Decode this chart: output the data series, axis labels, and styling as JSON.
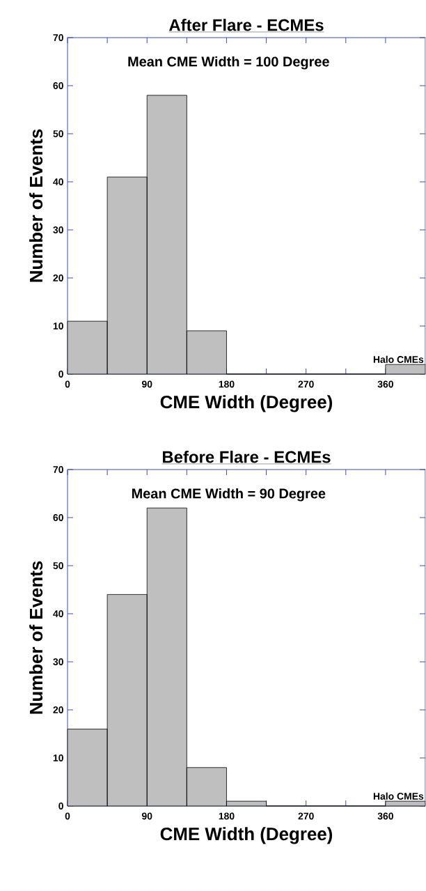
{
  "chart_data": [
    {
      "type": "histogram",
      "title": "After Flare - ECMEs",
      "xlabel": "CME Width (Degree)",
      "ylabel": "Number of Events",
      "bins": [
        0,
        45,
        90,
        135,
        180,
        225,
        270,
        315,
        360,
        405
      ],
      "values": [
        11,
        41,
        58,
        9,
        0,
        0,
        0,
        0,
        2
      ],
      "color": "#bfbfbf",
      "xlim": [
        0,
        405
      ],
      "ylim": [
        0,
        70
      ],
      "xticks": [
        0,
        {
          "value": 45,
          "label": null
        },
        90,
        {
          "value": 135,
          "label": null
        },
        180,
        {
          "value": 225,
          "label": null
        },
        270,
        {
          "value": 315,
          "label": null
        },
        360
      ],
      "yticks": [
        0,
        10,
        20,
        30,
        40,
        50,
        60,
        70
      ],
      "annotations": [
        "Mean CME Width = 100 Degree",
        "Halo CMEs"
      ]
    },
    {
      "type": "histogram",
      "title": "Before Flare - ECMEs",
      "xlabel": "CME Width (Degree)",
      "ylabel": "Number of Events",
      "bins": [
        0,
        45,
        90,
        135,
        180,
        225,
        270,
        315,
        360,
        405
      ],
      "values": [
        16,
        44,
        62,
        8,
        1,
        0,
        0,
        0,
        1
      ],
      "color": "#bfbfbf",
      "xlim": [
        0,
        405
      ],
      "ylim": [
        0,
        70
      ],
      "xticks": [
        0,
        {
          "value": 45,
          "label": null
        },
        90,
        {
          "value": 135,
          "label": null
        },
        180,
        {
          "value": 225,
          "label": null
        },
        270,
        {
          "value": 315,
          "label": null
        },
        360
      ],
      "yticks": [
        0,
        10,
        20,
        30,
        40,
        50,
        60,
        70
      ],
      "annotations": [
        "Mean CME Width = 90 Degree",
        "Halo CMEs"
      ]
    }
  ]
}
